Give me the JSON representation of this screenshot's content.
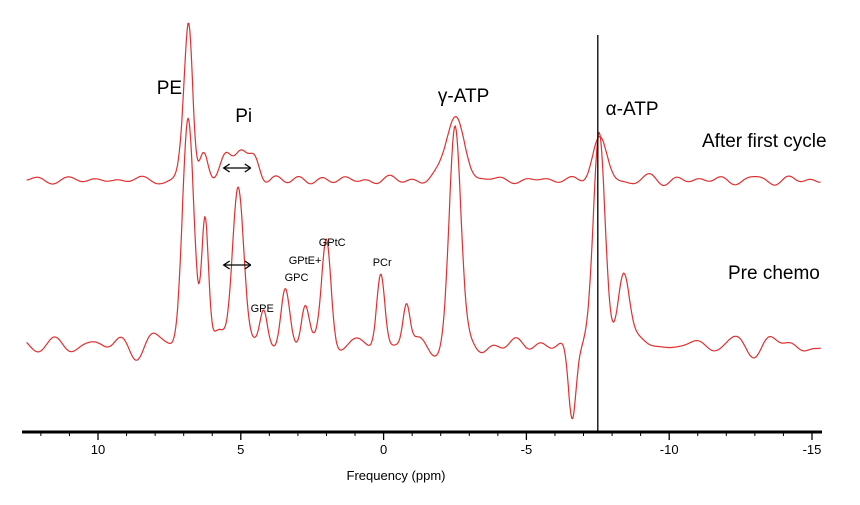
{
  "chart_data": {
    "type": "line",
    "title": "",
    "xlabel": "Frequency (ppm)",
    "ylabel": "",
    "xlim": [
      12.5,
      -15.3
    ],
    "x_reversed": true,
    "ticks": [
      10,
      5,
      0,
      -5,
      -10,
      -15
    ],
    "tick_labels": [
      "10",
      "5",
      "0",
      "-5",
      "-10",
      "-15"
    ],
    "line_color": "#e03030",
    "axis_color": "#000000",
    "reference_line_ppm": -7.5,
    "series": [
      {
        "name": "After first cycle",
        "baseline": 180,
        "noise_seed": 7,
        "noise_amp": 7,
        "peaks": [
          {
            "ppm": 6.8,
            "height": 120,
            "width": 0.13
          },
          {
            "ppm": 6.95,
            "height": 55,
            "width": 0.15
          },
          {
            "ppm": 6.3,
            "height": 28,
            "width": 0.15
          },
          {
            "ppm": 5.55,
            "height": 22,
            "width": 0.2
          },
          {
            "ppm": 5.0,
            "height": 32,
            "width": 0.22
          },
          {
            "ppm": 4.5,
            "height": 20,
            "width": 0.18
          },
          {
            "ppm": -2.5,
            "height": 62,
            "width": 0.33
          },
          {
            "ppm": -7.55,
            "height": 40,
            "width": 0.25
          }
        ]
      },
      {
        "name": "Pre chemo",
        "baseline": 345,
        "noise_seed": 13,
        "noise_amp": 17,
        "peaks": [
          {
            "ppm": 6.85,
            "height": 230,
            "width": 0.2
          },
          {
            "ppm": 6.25,
            "height": 130,
            "width": 0.12
          },
          {
            "ppm": 5.1,
            "height": 170,
            "width": 0.2
          },
          {
            "ppm": 4.2,
            "height": 28,
            "width": 0.12
          },
          {
            "ppm": 3.45,
            "height": 55,
            "width": 0.15
          },
          {
            "ppm": 2.75,
            "height": 45,
            "width": 0.14
          },
          {
            "ppm": 2.0,
            "height": 105,
            "width": 0.16
          },
          {
            "ppm": 0.1,
            "height": 75,
            "width": 0.14
          },
          {
            "ppm": -0.8,
            "height": 40,
            "width": 0.12
          },
          {
            "ppm": -2.5,
            "height": 215,
            "width": 0.2
          },
          {
            "ppm": -6.6,
            "height": -70,
            "width": 0.13
          },
          {
            "ppm": -7.55,
            "height": 210,
            "width": 0.2
          },
          {
            "ppm": -8.4,
            "height": 80,
            "width": 0.2
          }
        ]
      }
    ],
    "annotations": [
      {
        "text": "PE",
        "ppm": 7.5,
        "series": "After first cycle",
        "style": "big"
      },
      {
        "text": "Pi",
        "ppm": 4.9,
        "series": "After first cycle",
        "style": "big"
      },
      {
        "text": "γ-ATP",
        "ppm": -2.8,
        "series": "After first cycle",
        "style": "big"
      },
      {
        "text": "α-ATP",
        "ppm": -8.7,
        "series": "After first cycle",
        "style": "big"
      },
      {
        "text": "GPtC",
        "ppm": 1.8,
        "series": "Pre chemo",
        "style": "small"
      },
      {
        "text": "GPtE+",
        "ppm": 2.75,
        "series": "Pre chemo",
        "style": "small"
      },
      {
        "text": "GPC",
        "ppm": 3.05,
        "series": "Pre chemo",
        "style": "small"
      },
      {
        "text": "GPE",
        "ppm": 4.25,
        "series": "Pre chemo",
        "style": "small"
      },
      {
        "text": "PCr",
        "ppm": 0.05,
        "series": "Pre chemo",
        "style": "small"
      }
    ],
    "arrows": [
      {
        "from_ppm": 5.6,
        "to_ppm": 4.65,
        "series": "After first cycle"
      },
      {
        "from_ppm": 5.6,
        "to_ppm": 4.65,
        "series": "Pre chemo"
      }
    ],
    "legend": [
      {
        "text": "After first cycle",
        "placement": "right",
        "series": "After first cycle"
      },
      {
        "text": "Pre chemo",
        "placement": "right",
        "series": "Pre chemo"
      }
    ]
  }
}
